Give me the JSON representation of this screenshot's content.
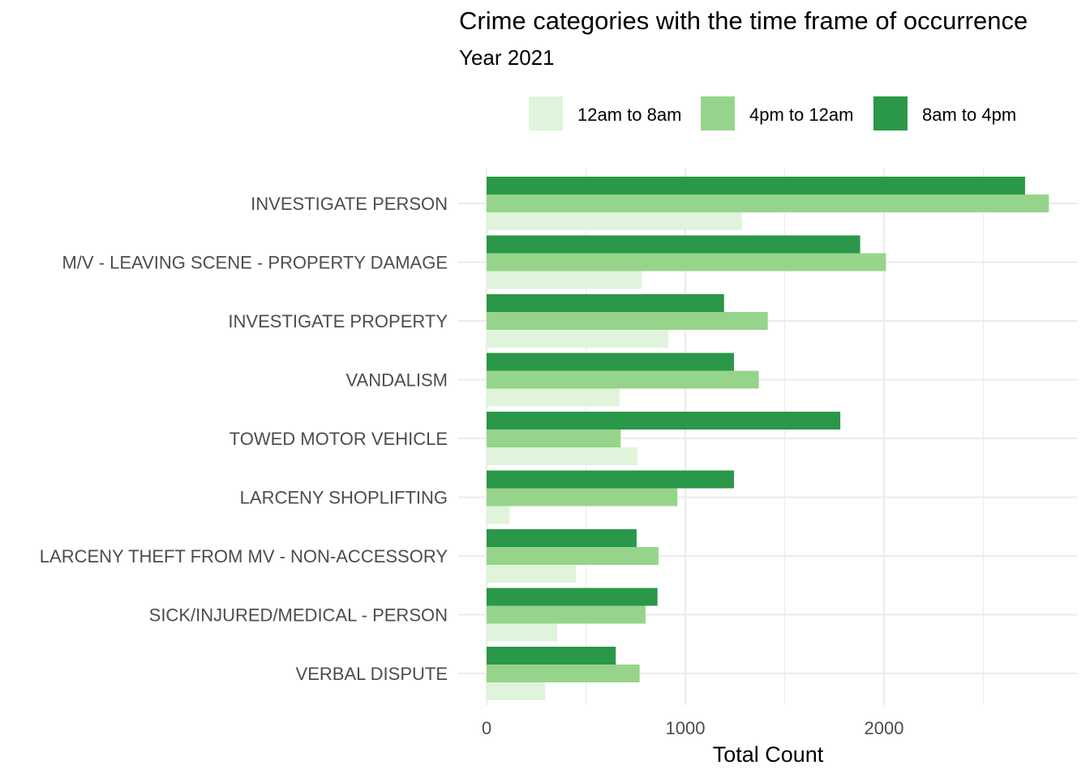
{
  "colors": {
    "12am to 8am": "#e0f4dc",
    "4pm to 12am": "#96d48b",
    "8am to 4pm": "#2a9848",
    "grid": "#ebebeb",
    "tick_text": "#4d4d4d"
  },
  "chart_data": {
    "type": "bar",
    "orientation": "horizontal",
    "title": "Crime categories with the time frame of occurrence",
    "subtitle": "Year 2021",
    "xlabel": "Total Count",
    "ylabel": "",
    "xlim": [
      0,
      2960
    ],
    "xticks": [
      0,
      1000,
      2000
    ],
    "grid": true,
    "legend_position": "top",
    "categories": [
      "INVESTIGATE PERSON",
      "M/V - LEAVING SCENE - PROPERTY DAMAGE",
      "INVESTIGATE PROPERTY",
      "VANDALISM",
      "TOWED MOTOR VEHICLE",
      "LARCENY SHOPLIFTING",
      "LARCENY THEFT FROM MV - NON-ACCESSORY",
      "SICK/INJURED/MEDICAL - PERSON",
      "VERBAL DISPUTE"
    ],
    "series": [
      {
        "name": "12am to 8am",
        "values": [
          1285,
          780,
          915,
          670,
          760,
          115,
          450,
          355,
          295
        ]
      },
      {
        "name": "4pm to 12am",
        "values": [
          2830,
          2010,
          1415,
          1370,
          675,
          960,
          865,
          800,
          770
        ]
      },
      {
        "name": "8am to 4pm",
        "values": [
          2710,
          1880,
          1195,
          1245,
          1780,
          1245,
          755,
          860,
          650
        ]
      }
    ]
  }
}
